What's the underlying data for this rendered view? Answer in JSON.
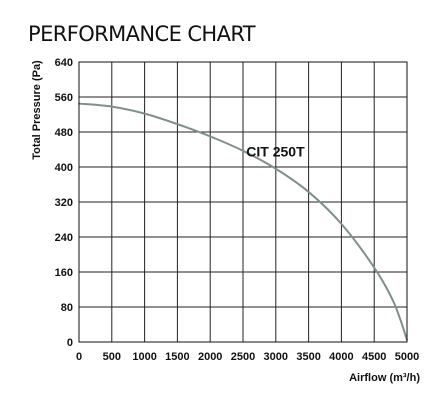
{
  "chart_data": {
    "type": "line",
    "title": "PERFORMANCE CHART",
    "xlabel": "Airflow (m³/h)",
    "ylabel": "Total Pressure (Pa)",
    "xlim": [
      0,
      5000
    ],
    "ylim": [
      0,
      640
    ],
    "xticks": [
      0,
      500,
      1000,
      1500,
      2000,
      2500,
      3000,
      3500,
      4000,
      4500,
      5000
    ],
    "yticks": [
      0,
      80,
      160,
      240,
      320,
      400,
      480,
      560,
      640
    ],
    "grid": true,
    "legend": "none",
    "series": [
      {
        "name": "CIT 250T",
        "color": "#7f908c",
        "x": [
          0,
          500,
          1000,
          1500,
          2000,
          2500,
          3000,
          3500,
          4000,
          4500,
          4800,
          5000
        ],
        "y": [
          545,
          538,
          522,
          498,
          470,
          437,
          396,
          343,
          270,
          170,
          90,
          5
        ]
      }
    ],
    "annotations": [
      {
        "text": "CIT 250T",
        "x": 2550,
        "y": 435
      }
    ]
  }
}
